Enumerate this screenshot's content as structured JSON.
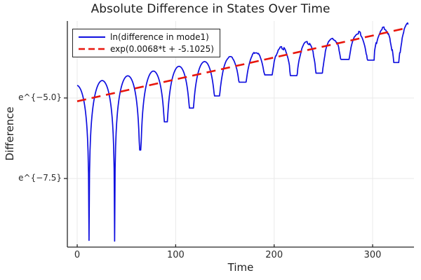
{
  "chart_data": {
    "type": "line",
    "title": "Absolute Difference in States Over Time",
    "xlabel": "Time",
    "ylabel": "Difference",
    "xlim": [
      -10,
      342
    ],
    "ylim": [
      -9.63,
      -2.61
    ],
    "y_scale_note": "y axis is natural-log scale; tick labels rendered as e^{value}",
    "grid": true,
    "legend_position": "top-left",
    "x_ticks": [
      {
        "value": 0,
        "label": "0"
      },
      {
        "value": 100,
        "label": "100"
      },
      {
        "value": 200,
        "label": "200"
      },
      {
        "value": 300,
        "label": "300"
      }
    ],
    "y_ticks": [
      {
        "value": -5.0,
        "label": "e^{−5.0}"
      },
      {
        "value": -7.5,
        "label": "e^{−7.5}"
      }
    ],
    "series": [
      {
        "name": "ln(difference in mode1)",
        "color": "#0f0fdf",
        "style": "solid",
        "line_width": 1.7,
        "model": {
          "description": "ln|oscillating difference|: arched humps with cusp minima at zero crossings every ~26 time units (first at t=12); exponential growth envelope; increasingly noisy after t~150",
          "t_start": 0,
          "t_end": 336,
          "step": 0.5,
          "first_zero_t": 12,
          "zero_spacing_t": 26,
          "envelope_slope": 0.0068,
          "envelope_intercept": -5.1025,
          "peak_offset_start": 0.5,
          "peak_offset_end": 0.12,
          "cusp_depths_below_fit": [
            4.4,
            4.6,
            1.95,
            1.25,
            1.0,
            0.8,
            0.55,
            0.5,
            0.7,
            0.8,
            0.55,
            0.75,
            1.0
          ],
          "noise_start_t": 140,
          "noise_ramp_t": 80,
          "noise_amp_at_peaks": 0.07,
          "noise_amp_boost_at_troughs": 0.5
        }
      },
      {
        "name": "exp(0.0068*t + -5.1025)",
        "color": "#e8160c",
        "style": "dashed",
        "line_width": 2.6,
        "fit": {
          "slope": 0.0068,
          "intercept": -5.1025,
          "t_start": 0,
          "t_end": 333
        }
      }
    ],
    "layout_colors": {
      "grid": "#e9e9e9",
      "spine": "#262626",
      "text": "#1f1f1f",
      "background": "#ffffff"
    }
  }
}
